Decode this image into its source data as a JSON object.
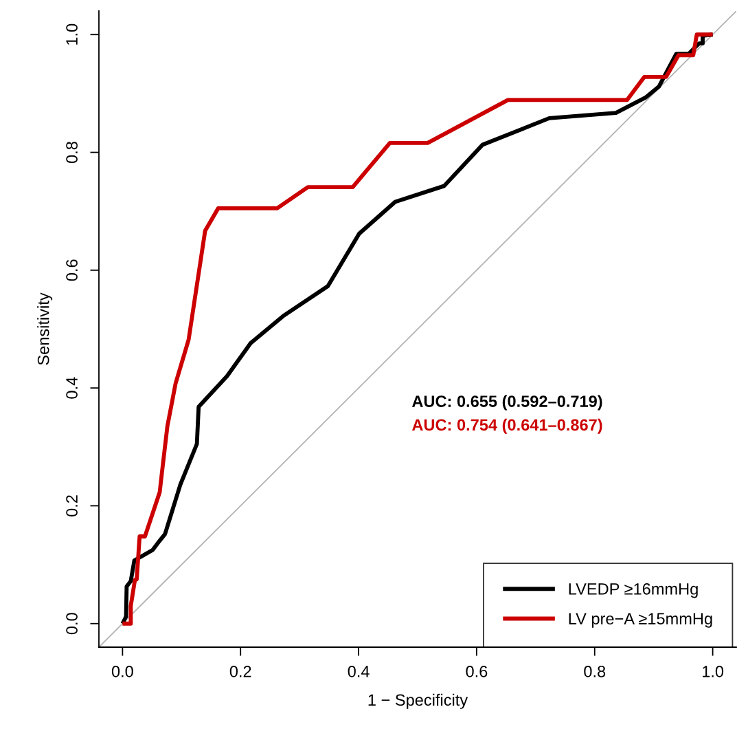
{
  "chart_data": {
    "type": "line",
    "xlabel": "1 − Specificity",
    "ylabel": "Sensitivity",
    "xlim": [
      -0.04,
      1.04
    ],
    "ylim": [
      -0.04,
      1.04
    ],
    "xticks": [
      {
        "value": 0,
        "label": "0.0"
      },
      {
        "value": 0.2,
        "label": "0.2"
      },
      {
        "value": 0.4,
        "label": "0.4"
      },
      {
        "value": 0.6,
        "label": "0.6"
      },
      {
        "value": 0.8,
        "label": "0.8"
      },
      {
        "value": 1,
        "label": "1.0"
      }
    ],
    "yticks": [
      {
        "value": 0,
        "label": "0.0"
      },
      {
        "value": 0.2,
        "label": "0.2"
      },
      {
        "value": 0.4,
        "label": "0.4"
      },
      {
        "value": 0.6,
        "label": "0.6"
      },
      {
        "value": 0.8,
        "label": "0.8"
      },
      {
        "value": 1,
        "label": "1.0"
      }
    ],
    "grid": false,
    "legend": "bottom right",
    "line_style": "solid",
    "marker": "none",
    "series": [
      {
        "name": "LVEDP ≥16mmHg",
        "color": "#000000",
        "x": [
          0,
          0.006,
          0.007,
          0.014,
          0.02,
          0.051,
          0.06,
          0.072,
          0.098,
          0.126,
          0.129,
          0.177,
          0.217,
          0.272,
          0.348,
          0.401,
          0.462,
          0.545,
          0.61,
          0.723,
          0.836,
          0.886,
          0.909,
          0.938,
          0.959,
          0.977,
          0.983,
          0.983,
          1.0
        ],
        "values": [
          0,
          0.012,
          0.063,
          0.072,
          0.107,
          0.125,
          0.137,
          0.152,
          0.236,
          0.305,
          0.368,
          0.42,
          0.476,
          0.522,
          0.573,
          0.662,
          0.716,
          0.743,
          0.813,
          0.858,
          0.867,
          0.893,
          0.912,
          0.967,
          0.967,
          0.985,
          0.985,
          0.998,
          1.0
        ]
      },
      {
        "name": "LV pre−A ≥15mmHg",
        "color": "#cc0000",
        "x": [
          0,
          0.014,
          0.014,
          0.021,
          0.024,
          0.029,
          0.038,
          0.063,
          0.067,
          0.076,
          0.09,
          0.112,
          0.14,
          0.162,
          0.262,
          0.314,
          0.39,
          0.453,
          0.517,
          0.653,
          0.855,
          0.884,
          0.921,
          0.942,
          0.967,
          0.973,
          1.0
        ],
        "values": [
          0,
          0,
          0.03,
          0.074,
          0.075,
          0.148,
          0.148,
          0.223,
          0.258,
          0.335,
          0.408,
          0.482,
          0.667,
          0.705,
          0.705,
          0.741,
          0.741,
          0.816,
          0.816,
          0.889,
          0.889,
          0.928,
          0.928,
          0.965,
          0.965,
          1.0,
          1.0
        ]
      },
      {
        "color": "#b3b3b3",
        "x": [
          -0.04,
          1.04
        ],
        "values": [
          -0.04,
          1.04
        ]
      }
    ],
    "annotations": [
      "AUC: 0.655 (0.592–0.719)",
      "AUC: 0.754 (0.641–0.867)"
    ]
  }
}
